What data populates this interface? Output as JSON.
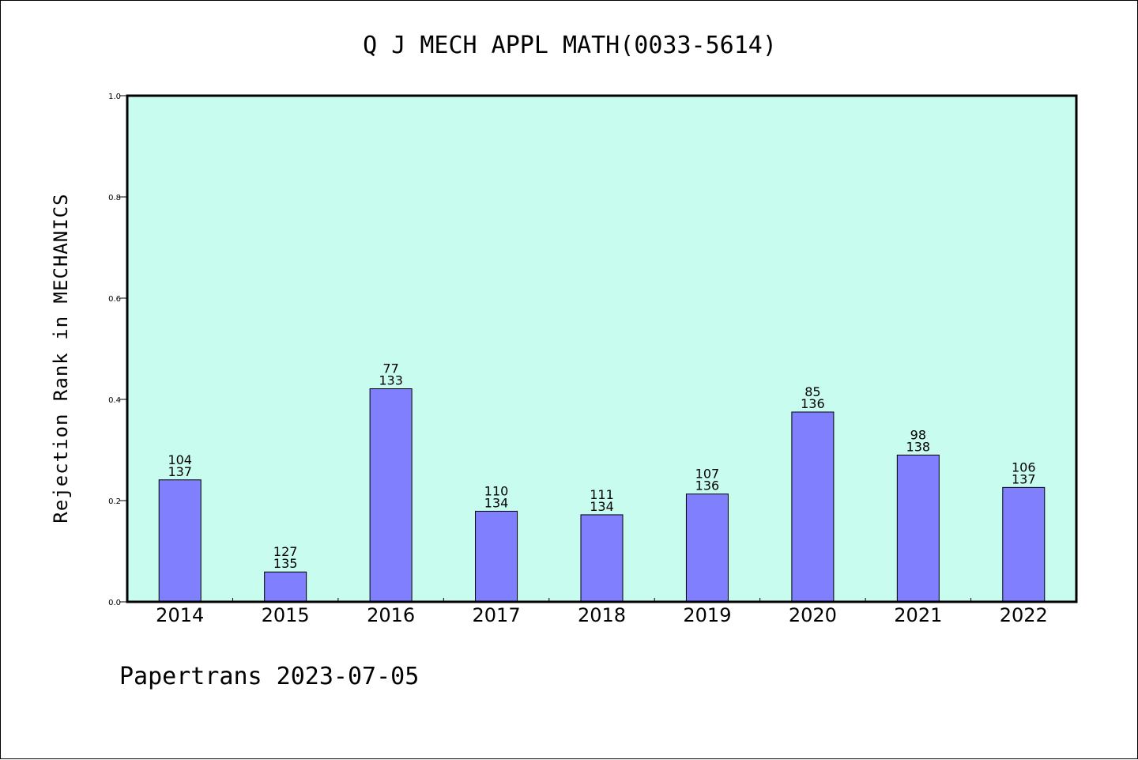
{
  "chart_data": {
    "type": "bar",
    "title": "Q J MECH APPL MATH(0033-5614)",
    "xlabel": "",
    "ylabel": "Rejection Rank in MECHANICS",
    "ylim": [
      0,
      1.0
    ],
    "yticks": [
      "0.0",
      "0.2",
      "0.4",
      "0.6",
      "0.8",
      "1.0"
    ],
    "categories": [
      "2014",
      "2015",
      "2016",
      "2017",
      "2018",
      "2019",
      "2020",
      "2021",
      "2022"
    ],
    "rank": [
      "104",
      "127",
      "77",
      "110",
      "111",
      "107",
      "85",
      "98",
      "106"
    ],
    "total": [
      "137",
      "135",
      "133",
      "134",
      "134",
      "136",
      "136",
      "138",
      "137"
    ],
    "values": [
      0.241,
      0.059,
      0.421,
      0.179,
      0.172,
      0.213,
      0.375,
      0.29,
      0.226
    ],
    "grid": false,
    "legend": "none"
  },
  "colors": {
    "plot_background": "#c8fcee",
    "bar_fill": "#8080ff",
    "bar_stroke": "#000000"
  },
  "footer": "Papertrans 2023-07-05"
}
